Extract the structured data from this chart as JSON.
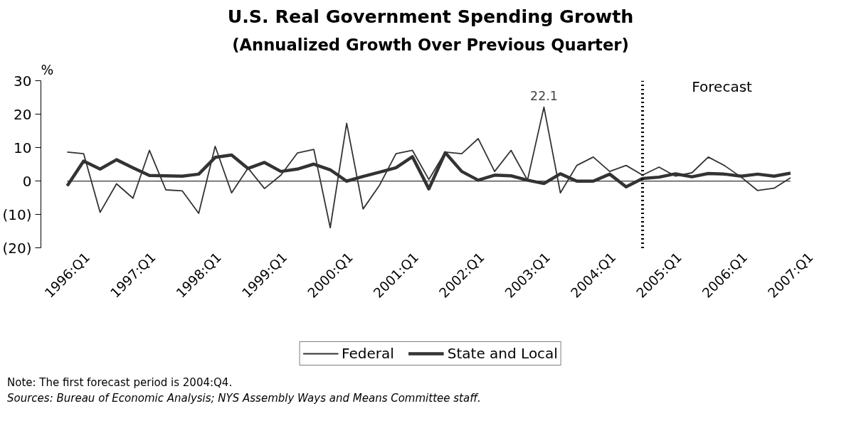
{
  "chart_data": {
    "type": "line",
    "title": "U.S. Real Government Spending Growth",
    "subtitle": "(Annualized Growth Over Previous Quarter)",
    "ylabel": "%",
    "categories": [
      "1996:Q1",
      null,
      null,
      null,
      "1997:Q1",
      null,
      null,
      null,
      "1998:Q1",
      null,
      null,
      null,
      "1999:Q1",
      null,
      null,
      null,
      "2000:Q1",
      null,
      null,
      null,
      "2001:Q1",
      null,
      null,
      null,
      "2002:Q1",
      null,
      null,
      null,
      "2003:Q1",
      null,
      null,
      null,
      "2004:Q1",
      null,
      null,
      null,
      "2005:Q1",
      null,
      null,
      null,
      "2006:Q1",
      null,
      null,
      null,
      "2007:Q1"
    ],
    "series": [
      {
        "name": "Federal",
        "color": "#333333",
        "values": [
          8.7,
          8.2,
          -9.3,
          -0.8,
          -5.1,
          9.2,
          -2.6,
          -2.9,
          -9.6,
          10.4,
          -3.5,
          3.9,
          -2.2,
          1.8,
          8.4,
          9.5,
          -13.9,
          17.3,
          -8.3,
          -1.2,
          8.2,
          9.2,
          0.5,
          8.7,
          8.2,
          12.7,
          2.9,
          9.2,
          0.3,
          22.1,
          -3.5,
          4.7,
          7.2,
          2.9,
          4.7,
          1.8,
          4.2,
          1.5,
          2.5,
          7.2,
          4.6,
          1.2,
          -2.8,
          -2.1,
          1.0
        ]
      },
      {
        "name": "State and Local",
        "color": "#333333",
        "values": [
          -1.4,
          6.0,
          3.6,
          6.4,
          4.0,
          1.7,
          1.6,
          1.5,
          2.1,
          7.1,
          7.8,
          3.8,
          5.6,
          2.9,
          3.6,
          5.1,
          3.4,
          0.0,
          1.4,
          2.7,
          4.0,
          7.3,
          -2.3,
          8.5,
          2.9,
          0.3,
          1.8,
          1.6,
          0.3,
          -0.7,
          2.2,
          0.0,
          0.0,
          2.1,
          -1.7,
          0.8,
          1.2,
          2.2,
          1.3,
          2.3,
          2.1,
          1.5,
          2.1,
          1.5,
          2.4
        ]
      }
    ],
    "ylim": [
      -20,
      30
    ],
    "yticks": [
      {
        "value": -20,
        "label": "(20)"
      },
      {
        "value": -10,
        "label": "(10)"
      },
      0,
      10,
      20,
      30
    ],
    "annotations": [
      {
        "text": "22.1",
        "y": 22.1
      },
      "Forecast",
      "Note: The first forecast period is 2004:Q4.",
      "Sources: Bureau of Economic Analysis; NYS Assembly Ways and Means Committee staff."
    ],
    "grid": false,
    "legend": "bottom",
    "marker": "none",
    "line_style": "solid"
  }
}
